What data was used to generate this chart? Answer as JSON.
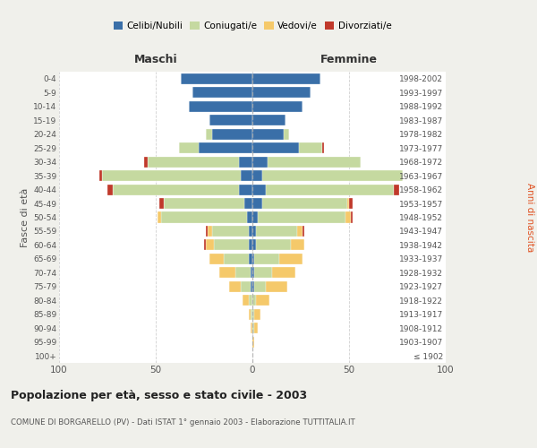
{
  "age_groups": [
    "100+",
    "95-99",
    "90-94",
    "85-89",
    "80-84",
    "75-79",
    "70-74",
    "65-69",
    "60-64",
    "55-59",
    "50-54",
    "45-49",
    "40-44",
    "35-39",
    "30-34",
    "25-29",
    "20-24",
    "15-19",
    "10-14",
    "5-9",
    "0-4"
  ],
  "birth_years": [
    "≤ 1902",
    "1903-1907",
    "1908-1912",
    "1913-1917",
    "1918-1922",
    "1923-1927",
    "1928-1932",
    "1933-1937",
    "1938-1942",
    "1943-1947",
    "1948-1952",
    "1953-1957",
    "1958-1962",
    "1963-1967",
    "1968-1972",
    "1973-1977",
    "1978-1982",
    "1983-1987",
    "1988-1992",
    "1993-1997",
    "1998-2002"
  ],
  "colors": {
    "celibi": "#3a6fa8",
    "coniugati": "#c5d9a0",
    "vedovi": "#f5c96a",
    "divorziati": "#c0392b"
  },
  "males": {
    "celibi": [
      0,
      0,
      0,
      0,
      0,
      1,
      1,
      2,
      2,
      2,
      3,
      4,
      7,
      6,
      7,
      28,
      21,
      22,
      33,
      31,
      37
    ],
    "coniugati": [
      0,
      0,
      0,
      1,
      2,
      5,
      8,
      13,
      18,
      19,
      44,
      42,
      65,
      72,
      47,
      10,
      3,
      0,
      0,
      0,
      0
    ],
    "vedovi": [
      0,
      0,
      1,
      1,
      3,
      6,
      8,
      7,
      4,
      2,
      2,
      0,
      0,
      0,
      0,
      0,
      0,
      0,
      0,
      0,
      0
    ],
    "divorziati": [
      0,
      0,
      0,
      0,
      0,
      0,
      0,
      0,
      1,
      1,
      0,
      2,
      3,
      1,
      2,
      0,
      0,
      0,
      0,
      0,
      0
    ]
  },
  "females": {
    "celibi": [
      0,
      0,
      0,
      0,
      0,
      1,
      1,
      1,
      2,
      2,
      3,
      5,
      7,
      5,
      8,
      24,
      16,
      17,
      26,
      30,
      35
    ],
    "coniugati": [
      0,
      0,
      1,
      1,
      2,
      6,
      9,
      13,
      18,
      21,
      45,
      44,
      66,
      73,
      48,
      12,
      3,
      0,
      0,
      0,
      0
    ],
    "vedovi": [
      0,
      1,
      2,
      3,
      7,
      11,
      12,
      12,
      7,
      3,
      3,
      1,
      0,
      0,
      0,
      0,
      0,
      0,
      0,
      0,
      0
    ],
    "divorziati": [
      0,
      0,
      0,
      0,
      0,
      0,
      0,
      0,
      0,
      1,
      1,
      2,
      3,
      0,
      0,
      1,
      0,
      0,
      0,
      0,
      0
    ]
  },
  "xlim": 100,
  "title": "Popolazione per età, sesso e stato civile - 2003",
  "subtitle": "COMUNE DI BORGARELLO (PV) - Dati ISTAT 1° gennaio 2003 - Elaborazione TUTTITALIA.IT",
  "ylabel_left": "Fasce di età",
  "ylabel_right": "Anni di nascita",
  "xlabel_left": "Maschi",
  "xlabel_right": "Femmine",
  "legend_labels": [
    "Celibi/Nubili",
    "Coniugati/e",
    "Vedovi/e",
    "Divorziati/e"
  ],
  "bg_color": "#f0f0eb",
  "plot_bg": "#ffffff"
}
